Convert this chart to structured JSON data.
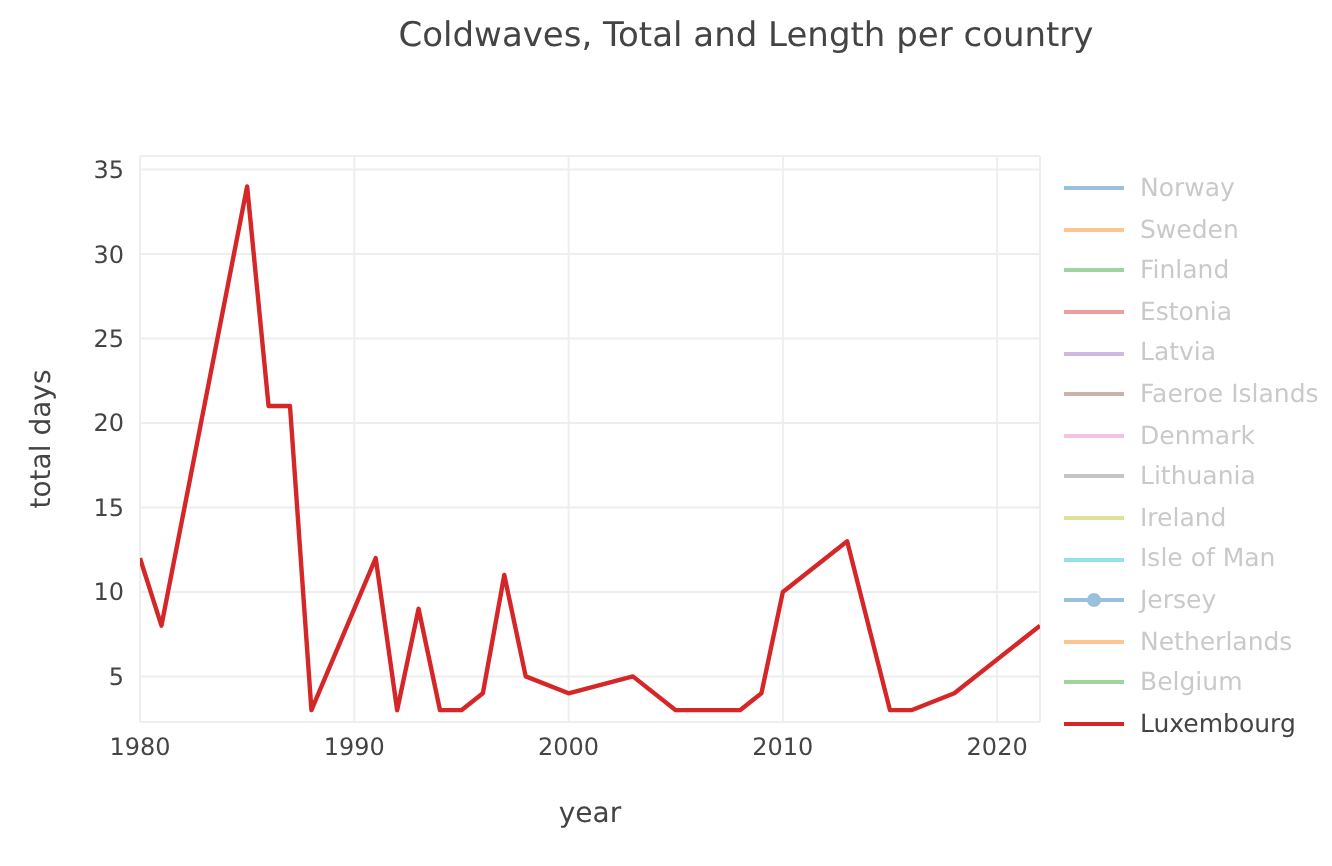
{
  "chart_data": {
    "type": "line",
    "title": "Coldwaves, Total and Length per country",
    "xlabel": "year",
    "ylabel": "total days",
    "x": [
      1980,
      1981,
      1985,
      1986,
      1987,
      1988,
      1991,
      1992,
      1993,
      1994,
      1995,
      1996,
      1997,
      1998,
      2000,
      2003,
      2005,
      2008,
      2009,
      2010,
      2013,
      2015,
      2016,
      2018,
      2022
    ],
    "series": [
      {
        "name": "Norway",
        "color": "#1f77b4",
        "values": [
          null,
          null,
          null,
          null,
          null,
          null,
          null,
          null,
          null,
          null,
          null,
          null,
          null,
          null,
          null,
          null,
          null,
          null,
          null,
          null,
          null,
          null,
          null,
          null,
          null
        ]
      },
      {
        "name": "Sweden",
        "color": "#ff7f0e",
        "values": [
          null,
          null,
          null,
          null,
          null,
          null,
          null,
          null,
          null,
          null,
          null,
          null,
          null,
          null,
          null,
          null,
          null,
          null,
          null,
          null,
          null,
          null,
          null,
          null,
          null
        ]
      },
      {
        "name": "Finland",
        "color": "#2ca02c",
        "values": [
          null,
          null,
          null,
          null,
          null,
          null,
          null,
          null,
          null,
          null,
          null,
          null,
          null,
          null,
          null,
          null,
          null,
          null,
          null,
          null,
          null,
          null,
          null,
          null,
          null
        ]
      },
      {
        "name": "Estonia",
        "color": "#d62728",
        "values": [
          null,
          null,
          null,
          null,
          null,
          null,
          null,
          null,
          null,
          null,
          null,
          null,
          null,
          null,
          null,
          null,
          null,
          null,
          null,
          null,
          null,
          null,
          null,
          null,
          null
        ]
      },
      {
        "name": "Latvia",
        "color": "#9467bd",
        "values": [
          null,
          null,
          null,
          null,
          null,
          null,
          null,
          null,
          null,
          null,
          null,
          null,
          null,
          null,
          null,
          null,
          null,
          null,
          null,
          null,
          null,
          null,
          null,
          null,
          null
        ]
      },
      {
        "name": "Faeroe Islands",
        "color": "#8c564b",
        "values": [
          null,
          null,
          null,
          null,
          null,
          null,
          null,
          null,
          null,
          null,
          null,
          null,
          null,
          null,
          null,
          null,
          null,
          null,
          null,
          null,
          null,
          null,
          null,
          null,
          null
        ]
      },
      {
        "name": "Denmark",
        "color": "#e377c2",
        "values": [
          null,
          null,
          null,
          null,
          null,
          null,
          null,
          null,
          null,
          null,
          null,
          null,
          null,
          null,
          null,
          null,
          null,
          null,
          null,
          null,
          null,
          null,
          null,
          null,
          null
        ]
      },
      {
        "name": "Lithuania",
        "color": "#7f7f7f",
        "values": [
          null,
          null,
          null,
          null,
          null,
          null,
          null,
          null,
          null,
          null,
          null,
          null,
          null,
          null,
          null,
          null,
          null,
          null,
          null,
          null,
          null,
          null,
          null,
          null,
          null
        ]
      },
      {
        "name": "Ireland",
        "color": "#bcbd22",
        "values": [
          null,
          null,
          null,
          null,
          null,
          null,
          null,
          null,
          null,
          null,
          null,
          null,
          null,
          null,
          null,
          null,
          null,
          null,
          null,
          null,
          null,
          null,
          null,
          null,
          null
        ]
      },
      {
        "name": "Isle of Man",
        "color": "#17becf",
        "values": [
          null,
          null,
          null,
          null,
          null,
          null,
          null,
          null,
          null,
          null,
          null,
          null,
          null,
          null,
          null,
          null,
          null,
          null,
          null,
          null,
          null,
          null,
          null,
          null,
          null
        ]
      },
      {
        "name": "Jersey",
        "color": "#1f77b4",
        "marker": "circle",
        "values": [
          null,
          null,
          null,
          null,
          null,
          null,
          null,
          null,
          null,
          null,
          null,
          null,
          null,
          null,
          null,
          null,
          null,
          null,
          null,
          null,
          null,
          null,
          null,
          null,
          null
        ]
      },
      {
        "name": "Netherlands",
        "color": "#ff7f0e",
        "values": [
          null,
          null,
          null,
          null,
          null,
          null,
          null,
          null,
          null,
          null,
          null,
          null,
          null,
          null,
          null,
          null,
          null,
          null,
          null,
          null,
          null,
          null,
          null,
          null,
          null
        ]
      },
      {
        "name": "Belgium",
        "color": "#2ca02c",
        "values": [
          null,
          null,
          null,
          null,
          null,
          null,
          null,
          null,
          null,
          null,
          null,
          null,
          null,
          null,
          null,
          null,
          null,
          null,
          null,
          null,
          null,
          null,
          null,
          null,
          null
        ]
      },
      {
        "name": "Luxembourg",
        "color": "#d62728",
        "values": [
          12,
          8,
          34,
          21,
          21,
          3,
          12,
          3,
          9,
          3,
          3,
          4,
          11,
          5,
          4,
          5,
          3,
          3,
          4,
          10,
          13,
          3,
          3,
          4,
          8
        ]
      }
    ],
    "xlim": [
      1980,
      2022
    ],
    "xticks": [
      1980,
      1990,
      2000,
      2010,
      2020
    ],
    "ylim": [
      2.3,
      35.8
    ],
    "yticks": [
      5,
      10,
      15,
      20,
      25,
      30,
      35
    ],
    "grid": true,
    "legend": "right",
    "line_style": "solid",
    "marker": "none"
  }
}
